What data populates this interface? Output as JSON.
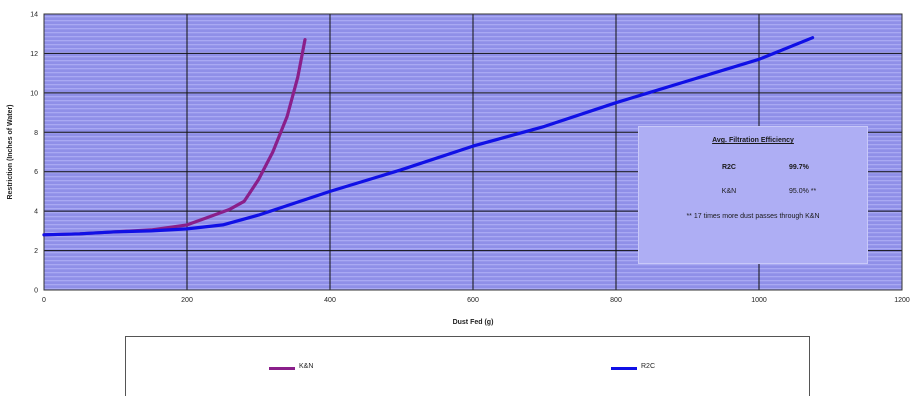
{
  "chart_data": {
    "type": "line",
    "title": "",
    "xlabel": "Dust Fed (g)",
    "ylabel": "Restriction (Inches of Water)",
    "xlim": [
      0,
      1200
    ],
    "ylim": [
      0,
      14
    ],
    "x_ticks": [
      "0",
      "200",
      "400",
      "600",
      "800",
      "1000",
      "1200"
    ],
    "y_ticks": [
      "0",
      "2",
      "4",
      "6",
      "8",
      "10",
      "12",
      "14"
    ],
    "grid": true,
    "legend_position": "bottom",
    "series": [
      {
        "name": "K&N",
        "color": "#8a1f8a",
        "points": [
          [
            0,
            2.8
          ],
          [
            50,
            2.85
          ],
          [
            100,
            2.95
          ],
          [
            150,
            3.05
          ],
          [
            200,
            3.3
          ],
          [
            230,
            3.7
          ],
          [
            260,
            4.1
          ],
          [
            280,
            4.5
          ],
          [
            300,
            5.6
          ],
          [
            320,
            7.0
          ],
          [
            340,
            8.8
          ],
          [
            355,
            10.8
          ],
          [
            365,
            12.7
          ]
        ]
      },
      {
        "name": "R2C",
        "color": "#1010e6",
        "points": [
          [
            0,
            2.8
          ],
          [
            50,
            2.85
          ],
          [
            100,
            2.95
          ],
          [
            150,
            3.0
          ],
          [
            200,
            3.1
          ],
          [
            250,
            3.3
          ],
          [
            300,
            3.8
          ],
          [
            400,
            5.0
          ],
          [
            500,
            6.1
          ],
          [
            600,
            7.3
          ],
          [
            700,
            8.3
          ],
          [
            800,
            9.5
          ],
          [
            900,
            10.6
          ],
          [
            1000,
            11.7
          ],
          [
            1075,
            12.8
          ]
        ]
      }
    ]
  },
  "info_box": {
    "title": "Avg. Filtration Efficiency",
    "rows": [
      {
        "label": "R2C",
        "value": "99.7%"
      },
      {
        "label": "K&N",
        "value": "95.0% **"
      }
    ],
    "note": "** 17 times more dust passes through K&N"
  },
  "legend": [
    {
      "label": "K&N",
      "color": "#8a1f8a"
    },
    {
      "label": "R2C",
      "color": "#1010e6"
    }
  ]
}
